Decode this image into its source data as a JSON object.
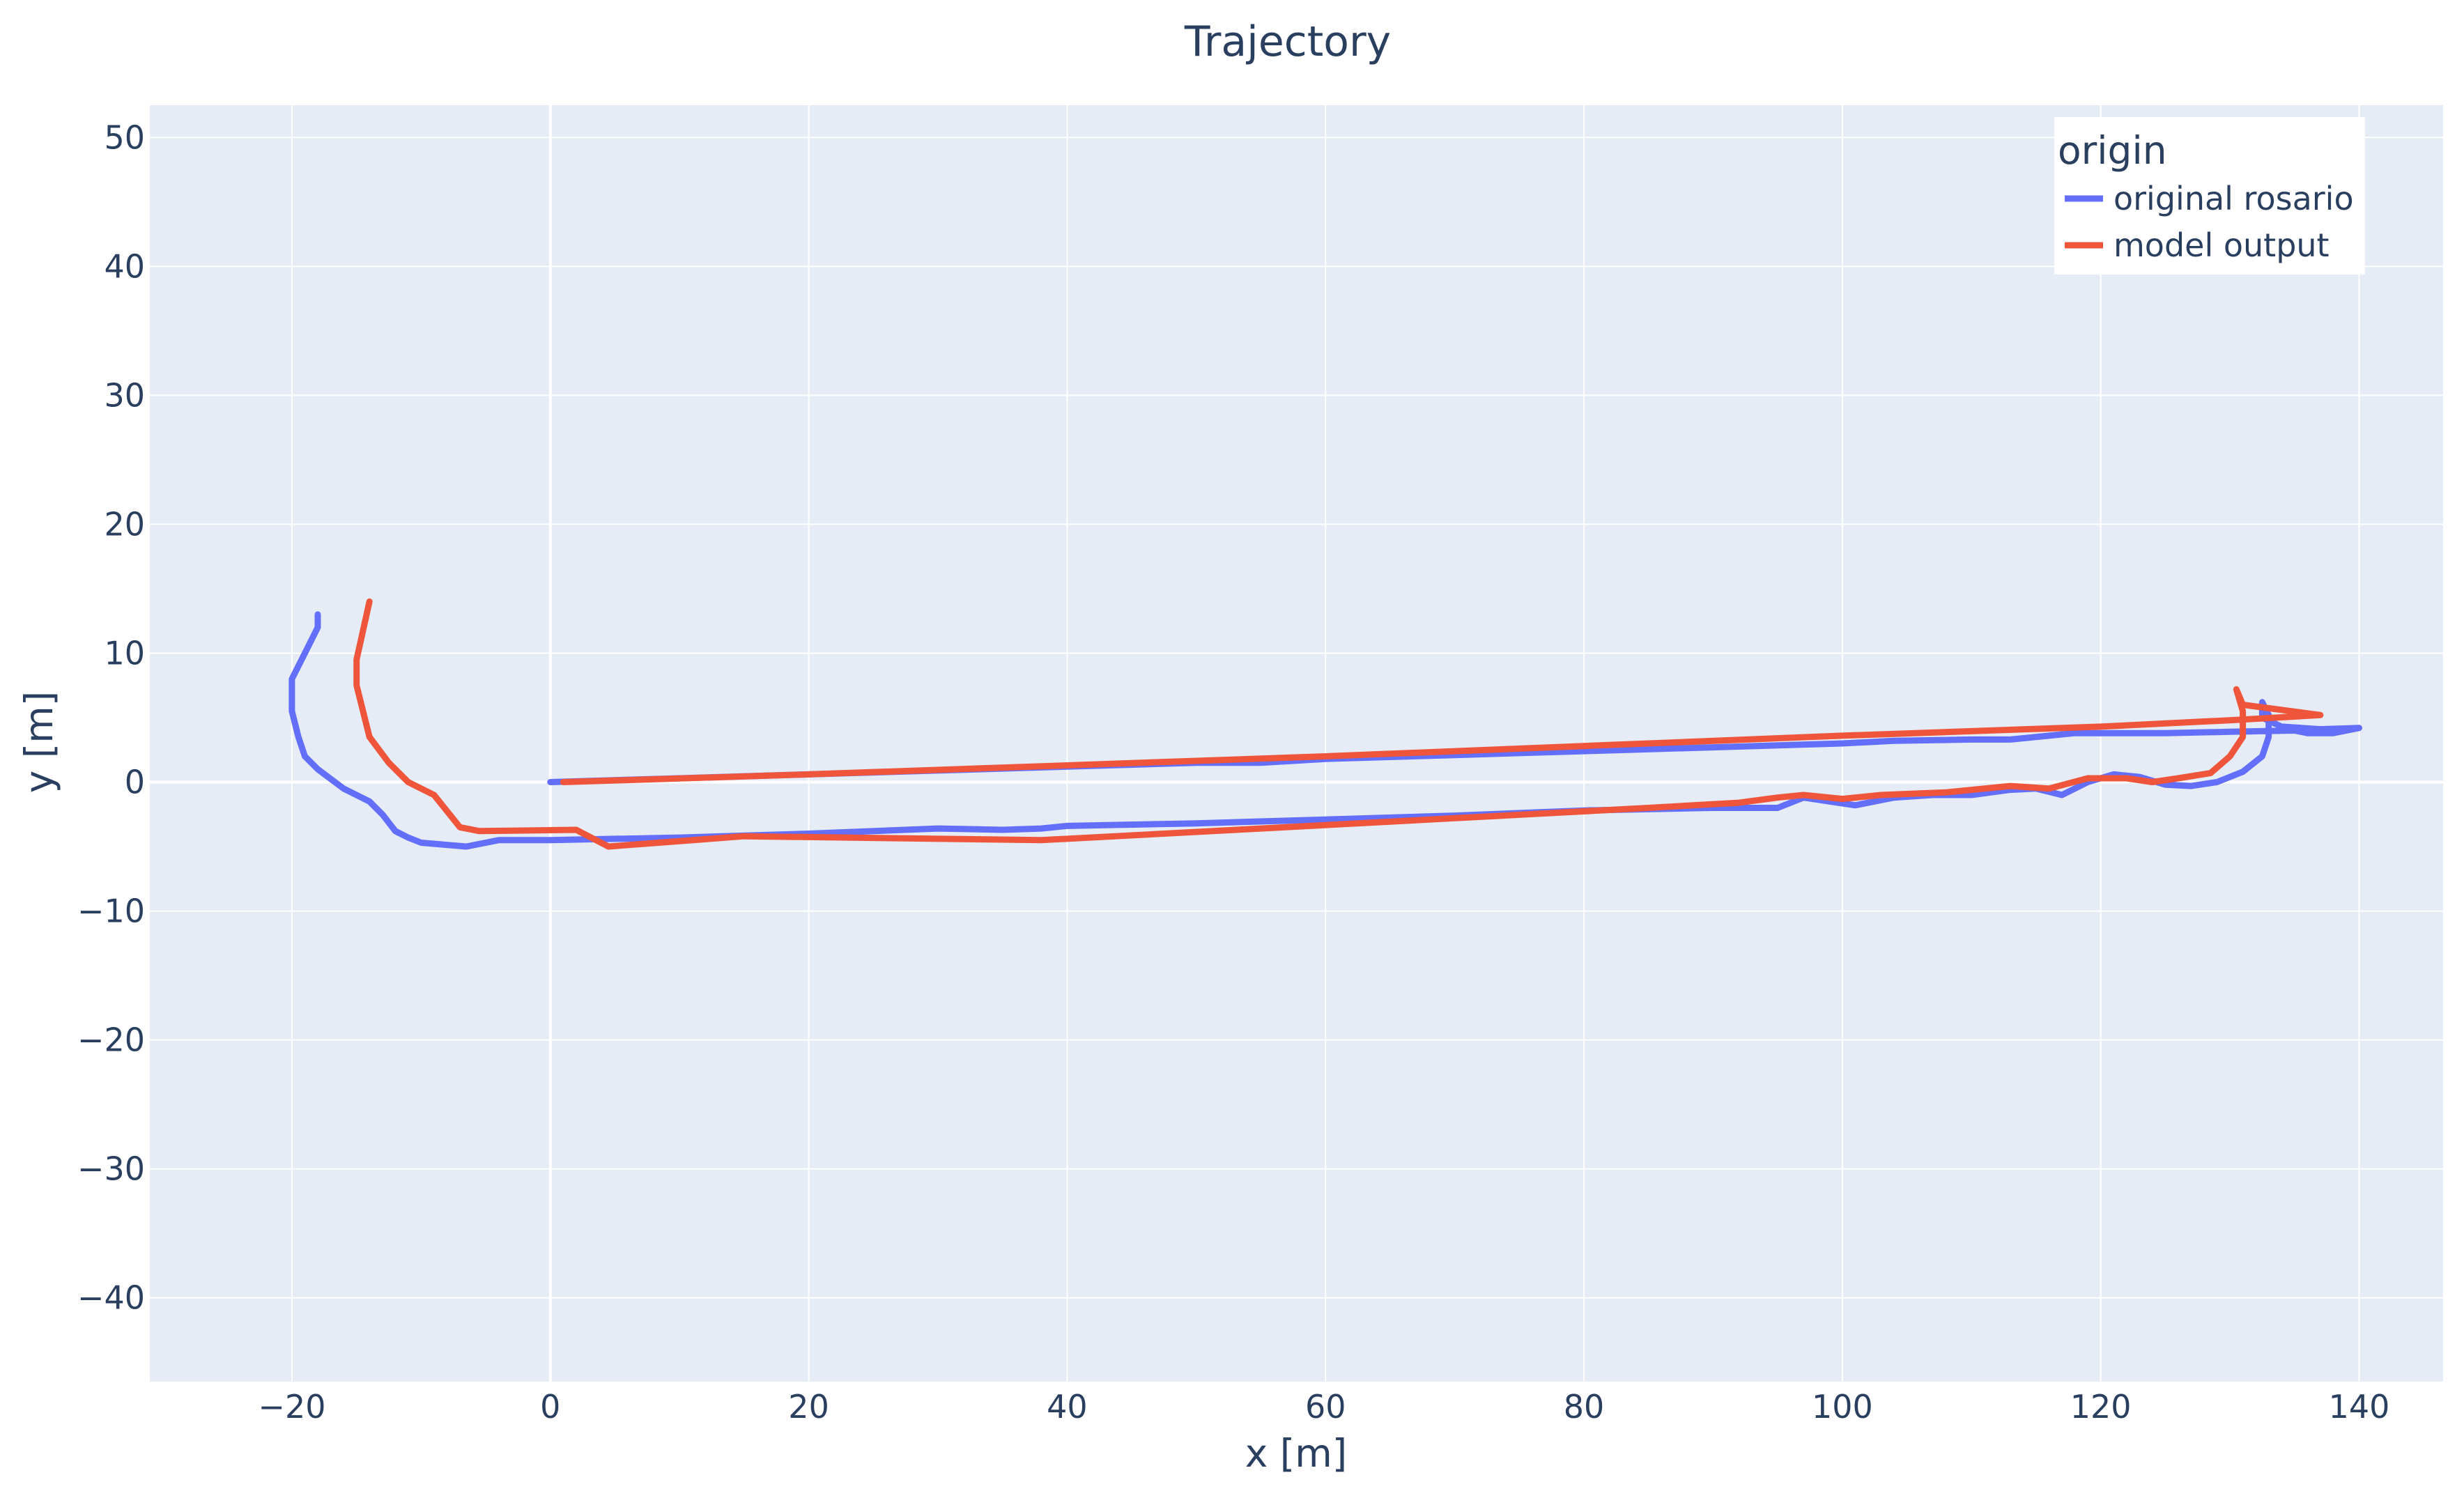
{
  "chart_data": {
    "type": "line",
    "title": "Trajectory",
    "xlabel": "x [m]",
    "ylabel": "y [m]",
    "xlim": [
      -31,
      146.5
    ],
    "ylim": [
      -46.5,
      52.5
    ],
    "xticks": [
      -20,
      0,
      20,
      40,
      60,
      80,
      100,
      120,
      140
    ],
    "yticks": [
      -40,
      -30,
      -20,
      -10,
      0,
      10,
      20,
      30,
      40,
      50
    ],
    "xtick_labels": [
      "−20",
      "0",
      "20",
      "40",
      "60",
      "80",
      "100",
      "120",
      "140"
    ],
    "ytick_labels": [
      "−40",
      "−30",
      "−20",
      "−10",
      "0",
      "10",
      "20",
      "30",
      "40",
      "50"
    ],
    "grid": true,
    "legend": {
      "title": "origin",
      "position": "top-right"
    },
    "series": [
      {
        "name": "original rosario",
        "color": "#636efa",
        "points": [
          [
            0,
            0
          ],
          [
            10,
            0.3
          ],
          [
            20,
            0.6
          ],
          [
            30,
            0.9
          ],
          [
            40,
            1.2
          ],
          [
            50,
            1.5
          ],
          [
            55,
            1.5
          ],
          [
            60,
            1.8
          ],
          [
            70,
            2.1
          ],
          [
            80,
            2.4
          ],
          [
            90,
            2.7
          ],
          [
            100,
            3.0
          ],
          [
            104,
            3.2
          ],
          [
            110,
            3.3
          ],
          [
            113,
            3.3
          ],
          [
            118,
            3.8
          ],
          [
            125,
            3.8
          ],
          [
            130,
            3.9
          ],
          [
            135,
            4.0
          ],
          [
            136,
            3.8
          ],
          [
            138,
            3.8
          ],
          [
            140,
            4.2
          ],
          [
            137,
            4.1
          ],
          [
            134,
            4.3
          ],
          [
            132.5,
            5.0
          ],
          [
            132.5,
            6.2
          ],
          [
            133,
            5.2
          ],
          [
            133,
            3.5
          ],
          [
            132.5,
            2.0
          ],
          [
            131,
            0.8
          ],
          [
            129,
            0
          ],
          [
            127,
            -0.3
          ],
          [
            125,
            -0.2
          ],
          [
            123,
            0.4
          ],
          [
            121,
            0.6
          ],
          [
            119,
            0
          ],
          [
            117,
            -1.0
          ],
          [
            115,
            -0.5
          ],
          [
            113,
            -0.6
          ],
          [
            110,
            -1.0
          ],
          [
            107,
            -1.0
          ],
          [
            104,
            -1.2
          ],
          [
            101,
            -1.8
          ],
          [
            99,
            -1.5
          ],
          [
            97,
            -1.2
          ],
          [
            95,
            -2.0
          ],
          [
            90,
            -2.0
          ],
          [
            80,
            -2.2
          ],
          [
            70,
            -2.6
          ],
          [
            60,
            -2.9
          ],
          [
            50,
            -3.2
          ],
          [
            40,
            -3.4
          ],
          [
            38,
            -3.6
          ],
          [
            35,
            -3.7
          ],
          [
            30,
            -3.6
          ],
          [
            20,
            -4.0
          ],
          [
            10,
            -4.3
          ],
          [
            0,
            -4.5
          ],
          [
            -4,
            -4.5
          ],
          [
            -6.5,
            -5.0
          ],
          [
            -10,
            -4.7
          ],
          [
            -11,
            -4.3
          ],
          [
            -12,
            -3.8
          ],
          [
            -13,
            -2.5
          ],
          [
            -14,
            -1.5
          ],
          [
            -16,
            -0.5
          ],
          [
            -18,
            1.0
          ],
          [
            -19,
            2.0
          ],
          [
            -19.5,
            3.5
          ],
          [
            -20,
            5.5
          ],
          [
            -20,
            8.0
          ],
          [
            -19,
            10.0
          ],
          [
            -18,
            12.0
          ],
          [
            -18,
            13.0
          ]
        ]
      },
      {
        "name": "model output",
        "color": "#ef553b",
        "points": [
          [
            1,
            0
          ],
          [
            20,
            0.6
          ],
          [
            40,
            1.3
          ],
          [
            60,
            2.0
          ],
          [
            80,
            2.8
          ],
          [
            100,
            3.6
          ],
          [
            120,
            4.3
          ],
          [
            130,
            4.8
          ],
          [
            137,
            5.2
          ],
          [
            131,
            6.0
          ],
          [
            130.5,
            7.2
          ],
          [
            131,
            5.5
          ],
          [
            131,
            3.5
          ],
          [
            130,
            2.0
          ],
          [
            128.5,
            0.7
          ],
          [
            126,
            0.3
          ],
          [
            124,
            0
          ],
          [
            122,
            0.3
          ],
          [
            119,
            0.3
          ],
          [
            116,
            -0.5
          ],
          [
            113,
            -0.3
          ],
          [
            108,
            -0.8
          ],
          [
            103,
            -1.0
          ],
          [
            100,
            -1.3
          ],
          [
            97,
            -1.0
          ],
          [
            95,
            -1.2
          ],
          [
            92,
            -1.6
          ],
          [
            85,
            -2.0
          ],
          [
            70,
            -2.8
          ],
          [
            55,
            -3.6
          ],
          [
            38,
            -4.5
          ],
          [
            15,
            -4.2
          ],
          [
            4.5,
            -5.0
          ],
          [
            2,
            -3.7
          ],
          [
            -5.5,
            -3.8
          ],
          [
            -7,
            -3.5
          ],
          [
            -9,
            -1.0
          ],
          [
            -11,
            0
          ],
          [
            -12.5,
            1.5
          ],
          [
            -14,
            3.5
          ],
          [
            -15,
            7.5
          ],
          [
            -15,
            9.5
          ],
          [
            -14,
            14.0
          ]
        ]
      }
    ]
  }
}
